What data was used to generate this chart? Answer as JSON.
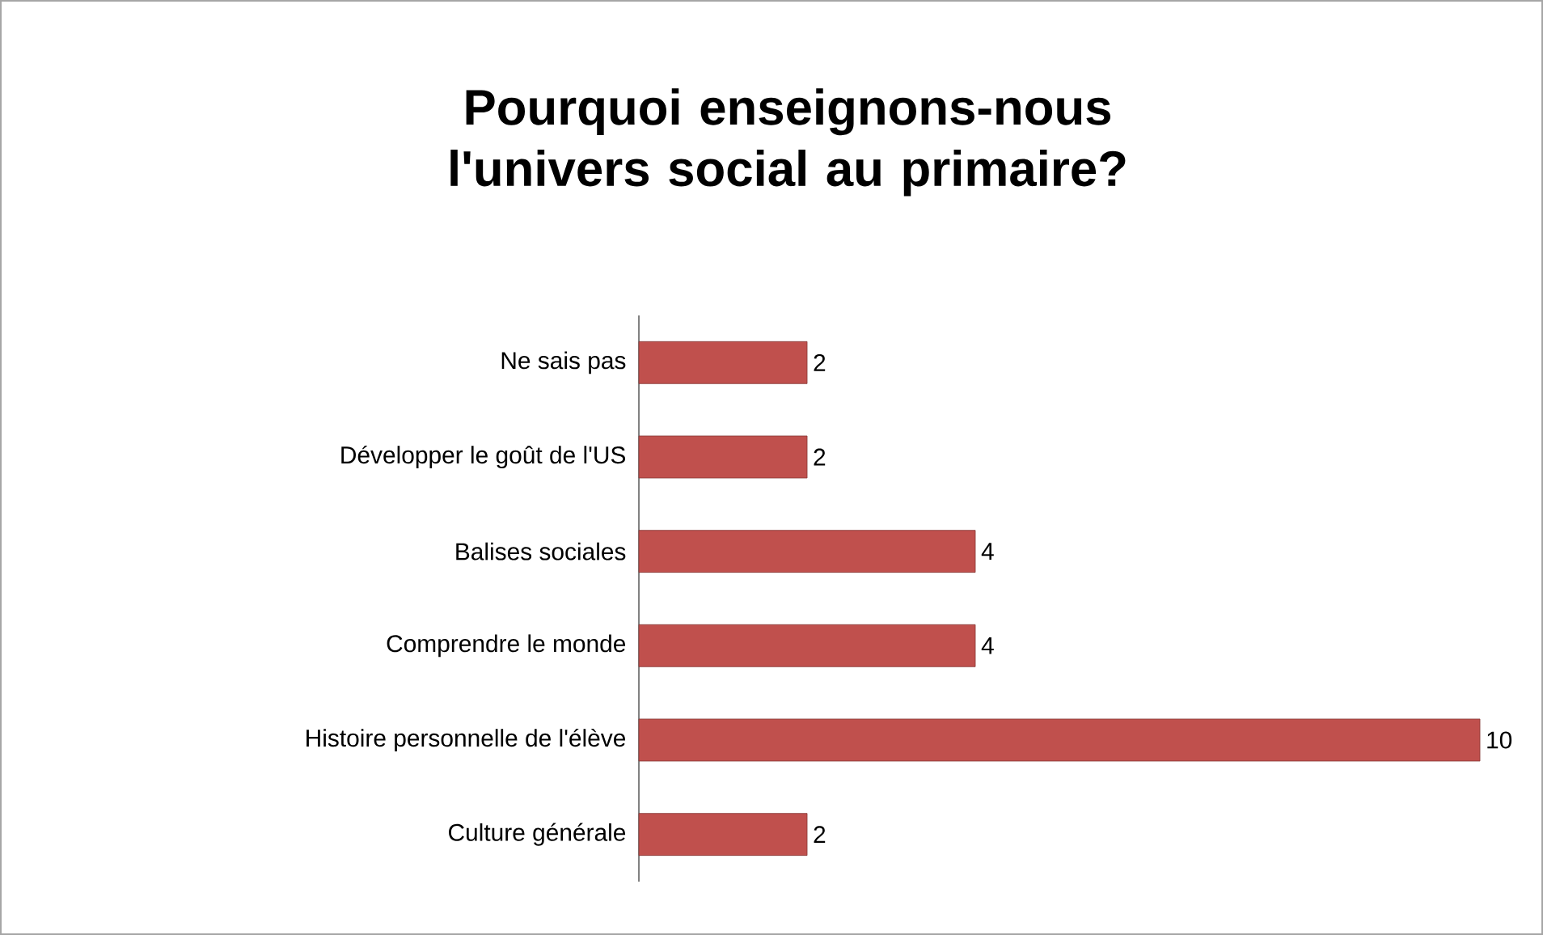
{
  "chart_data": {
    "type": "bar",
    "orientation": "horizontal",
    "title": "Pourquoi enseignons-nous l'univers social au primaire?",
    "categories": [
      "Ne sais pas",
      "Développer le goût de l'US",
      "Balises sociales",
      "Comprendre le monde",
      "Histoire personnelle de l'élève",
      "Culture générale"
    ],
    "values": [
      2,
      2,
      4,
      4,
      10,
      2
    ],
    "color": "#c0504d",
    "data_labels": true
  }
}
